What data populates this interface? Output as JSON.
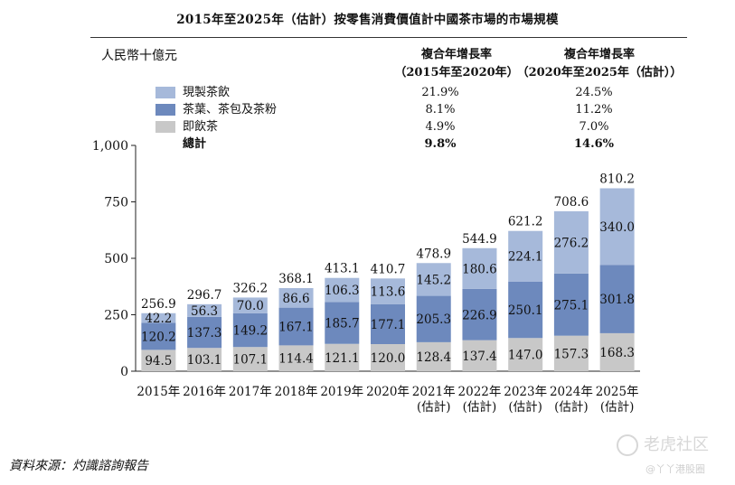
{
  "header": {
    "title": "2015年至2025年（估計）按零售消費價值計中國茶市場的市場規模",
    "unit": "人民幣十億元"
  },
  "cagr": {
    "col1_line1": "複合年增長率",
    "col1_line2": "（2015年至2020年）",
    "col2_line1": "複合年增長率",
    "col2_line2": "（2020年至2025年（估計））"
  },
  "legend": [
    {
      "label": "現製茶飲",
      "color": "#a6b9da",
      "cagr1": "21.9%",
      "cagr2": "24.5%"
    },
    {
      "label": "茶葉、茶包及茶粉",
      "color": "#6d89bd",
      "cagr1": "8.1%",
      "cagr2": "11.2%"
    },
    {
      "label": "即飲茶",
      "color": "#c8c8c8",
      "cagr1": "4.9%",
      "cagr2": "7.0%"
    }
  ],
  "total_row": {
    "label": "總計",
    "cagr1": "9.8%",
    "cagr2": "14.6%"
  },
  "chart_data": {
    "type": "bar",
    "stacked": true,
    "ylim": [
      0,
      1000
    ],
    "yticks": [
      0,
      250,
      500,
      750,
      1000
    ],
    "ytick_labels": [
      "0",
      "250",
      "500",
      "750",
      "1,000"
    ],
    "ylabel": "人民幣十億元",
    "categories": [
      "2015年",
      "2016年",
      "2017年",
      "2018年",
      "2019年",
      "2020年",
      "2021年（估計）",
      "2022年（估計）",
      "2023年（估計）",
      "2024年（估計）",
      "2025年（估計）"
    ],
    "category_lines": [
      [
        "2015年"
      ],
      [
        "2016年"
      ],
      [
        "2017年"
      ],
      [
        "2018年"
      ],
      [
        "2019年"
      ],
      [
        "2020年"
      ],
      [
        "2021年",
        "(估計)"
      ],
      [
        "2022年",
        "(估計)"
      ],
      [
        "2023年",
        "(估計)"
      ],
      [
        "2024年",
        "(估計)"
      ],
      [
        "2025年",
        "(估計)"
      ]
    ],
    "series": [
      {
        "name": "即飲茶",
        "color": "#c8c8c8",
        "values": [
          94.5,
          103.1,
          107.1,
          114.4,
          121.1,
          120.0,
          128.4,
          137.4,
          147.0,
          157.3,
          168.3
        ]
      },
      {
        "name": "茶葉、茶包及茶粉",
        "color": "#6d89bd",
        "values": [
          120.2,
          137.3,
          149.2,
          167.1,
          185.7,
          177.1,
          205.3,
          226.9,
          250.1,
          275.1,
          301.8
        ]
      },
      {
        "name": "現製茶飲",
        "color": "#a6b9da",
        "values": [
          42.2,
          56.3,
          70.0,
          86.6,
          106.3,
          113.6,
          145.2,
          180.6,
          224.1,
          276.2,
          340.0
        ]
      }
    ],
    "totals": [
      256.9,
      296.7,
      326.2,
      368.1,
      413.1,
      410.7,
      478.9,
      544.9,
      621.2,
      708.6,
      810.2
    ]
  },
  "footer": {
    "source": "資料來源：灼識諮詢報告",
    "watermark": "老虎社区",
    "watermark_sub": "@丫丫港股圈"
  }
}
